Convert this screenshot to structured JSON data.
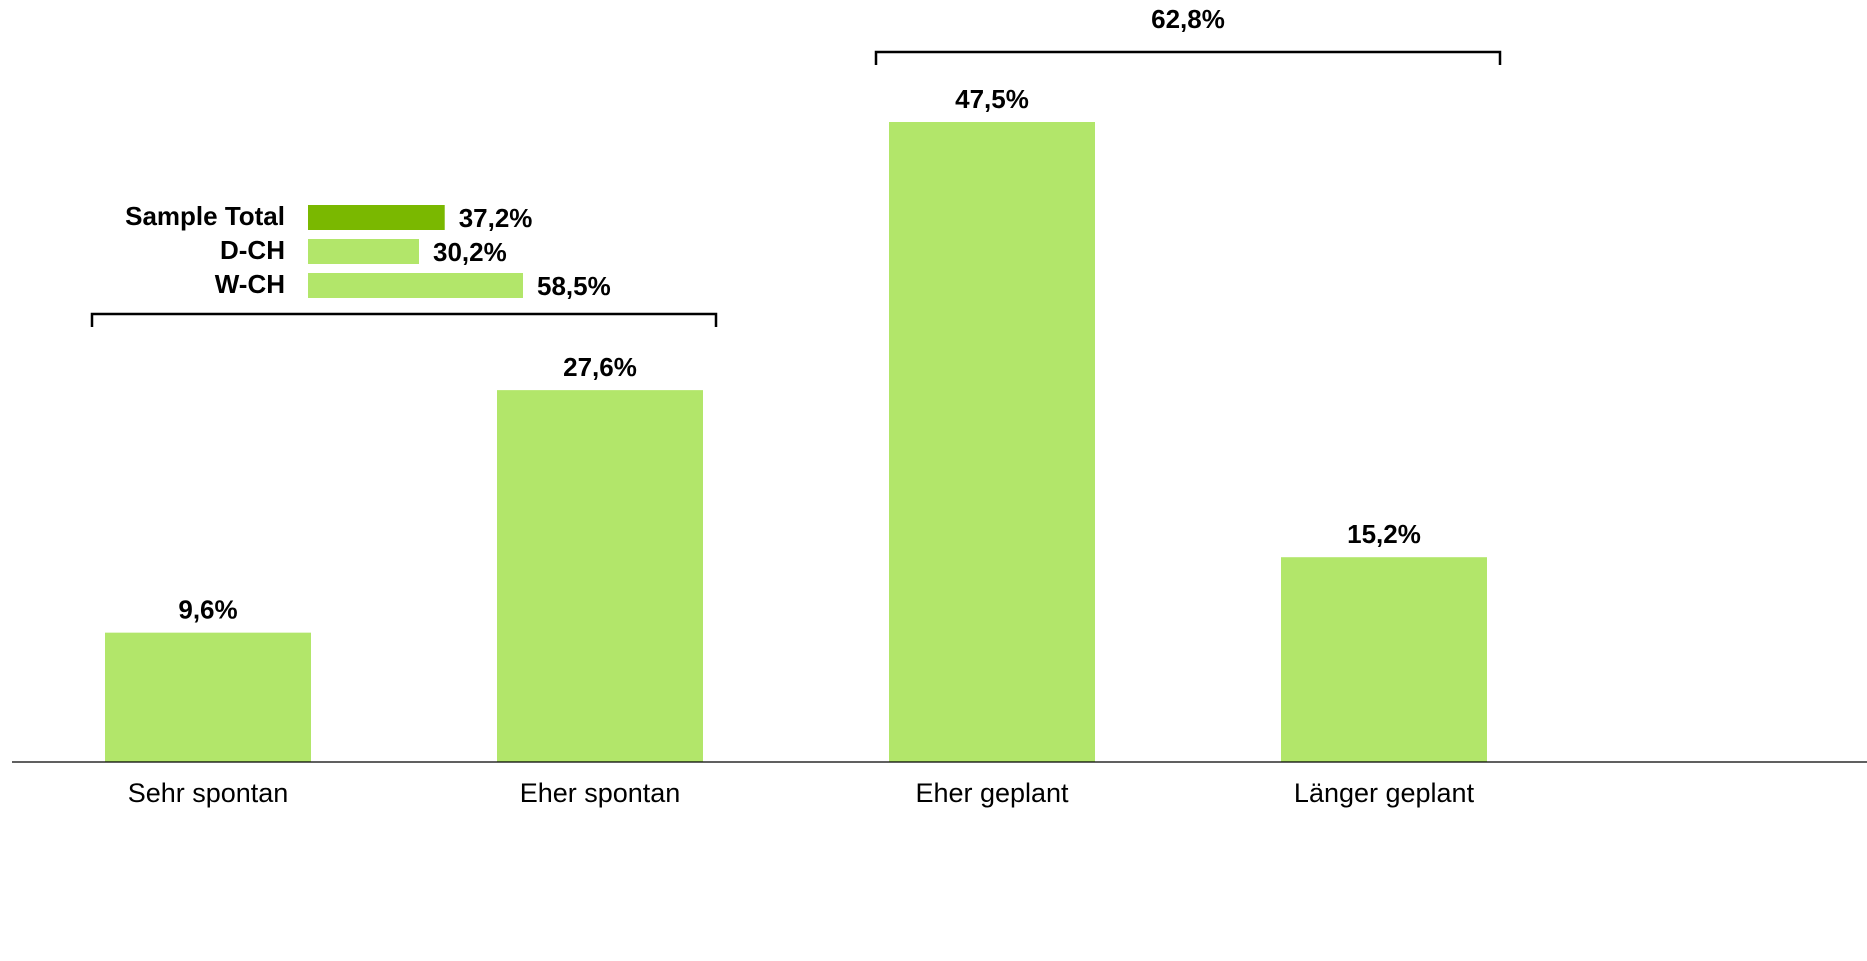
{
  "chart_data": {
    "type": "bar",
    "categories": [
      "Sehr spontan",
      "Eher spontan",
      "Eher geplant",
      "Länger geplant"
    ],
    "values": [
      9.6,
      27.6,
      47.5,
      15.2
    ],
    "value_labels": [
      "9,6%",
      "27,6%",
      "47,5%",
      "15,2%"
    ],
    "bar_color": "#b2e66a",
    "ylim": [
      0,
      50
    ],
    "grid": false,
    "groups": [
      {
        "label": "",
        "covers": [
          "Sehr spontan",
          "Eher spontan"
        ],
        "breakdown": [
          {
            "name": "Sample Total",
            "value": 37.2,
            "label": "37,2%",
            "color": "#7ab800"
          },
          {
            "name": "D-CH",
            "value": 30.2,
            "label": "30,2%",
            "color": "#b2e66a"
          },
          {
            "name": "W-CH",
            "value": 58.5,
            "label": "58,5%",
            "color": "#b2e66a"
          }
        ]
      },
      {
        "label": "62,8%",
        "covers": [
          "Eher geplant",
          "Länger geplant"
        ],
        "breakdown": []
      }
    ]
  }
}
